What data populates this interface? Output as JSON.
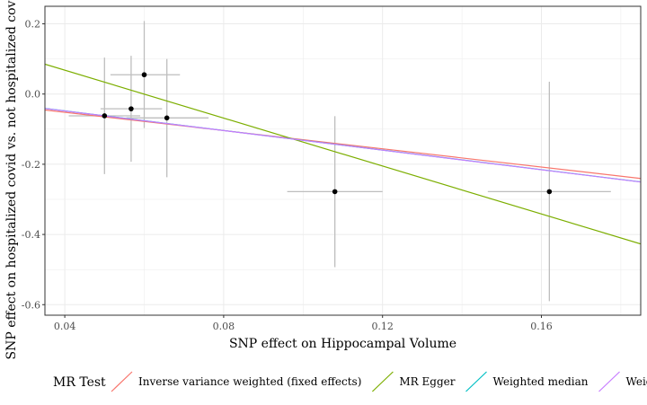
{
  "chart_data": {
    "type": "scatter",
    "xlabel": "SNP effect on Hippocampal Volume",
    "ylabel": "SNP effect on hospitalized covid vs. not hospitalized covid wo/",
    "xlim": [
      0.035,
      0.185
    ],
    "ylim": [
      -0.63,
      0.25
    ],
    "x_ticks": [
      0.04,
      0.08,
      0.12,
      0.16
    ],
    "x_tick_labels": [
      "0.04",
      "0.08",
      "0.12",
      "0.16"
    ],
    "y_ticks": [
      0.2,
      0.0,
      -0.2,
      -0.4,
      -0.6
    ],
    "y_tick_labels": [
      "0.2",
      "0.0",
      "-0.2",
      "-0.4",
      "-0.6"
    ],
    "grid": true,
    "points": [
      {
        "x": 0.05,
        "y": -0.062,
        "x_lo": 0.041,
        "x_hi": 0.059,
        "y_lo": -0.228,
        "y_hi": 0.104
      },
      {
        "x": 0.0567,
        "y": -0.042,
        "x_lo": 0.049,
        "x_hi": 0.0645,
        "y_lo": -0.193,
        "y_hi": 0.109
      },
      {
        "x": 0.06,
        "y": 0.055,
        "x_lo": 0.0515,
        "x_hi": 0.069,
        "y_lo": -0.097,
        "y_hi": 0.208
      },
      {
        "x": 0.0657,
        "y": -0.068,
        "x_lo": 0.0555,
        "x_hi": 0.0762,
        "y_lo": -0.237,
        "y_hi": 0.1
      },
      {
        "x": 0.108,
        "y": -0.278,
        "x_lo": 0.096,
        "x_hi": 0.12,
        "y_lo": -0.493,
        "y_hi": -0.063
      },
      {
        "x": 0.162,
        "y": -0.278,
        "x_lo": 0.1465,
        "x_hi": 0.1775,
        "y_lo": -0.59,
        "y_hi": 0.035
      }
    ],
    "lines": [
      {
        "name": "Inverse variance weighted (fixed effects)",
        "color": "#F8766D",
        "intercept": 0.0,
        "slope": -1.3
      },
      {
        "name": "MR Egger",
        "color": "#7CAE00",
        "intercept": 0.2046,
        "slope": -3.414
      },
      {
        "name": "Weighted median",
        "color": "#00BFC4",
        "intercept": 0.0078,
        "slope": -1.395
      },
      {
        "name": "Weighted mode",
        "color": "#C77CFF",
        "intercept": 0.0078,
        "slope": -1.397
      }
    ],
    "legend": {
      "title": "MR Test",
      "position": "bottom"
    },
    "colors": {
      "point": "#000000",
      "errorbar": "#bebebe",
      "grid": "#ebebeb",
      "border": "#333333"
    }
  }
}
